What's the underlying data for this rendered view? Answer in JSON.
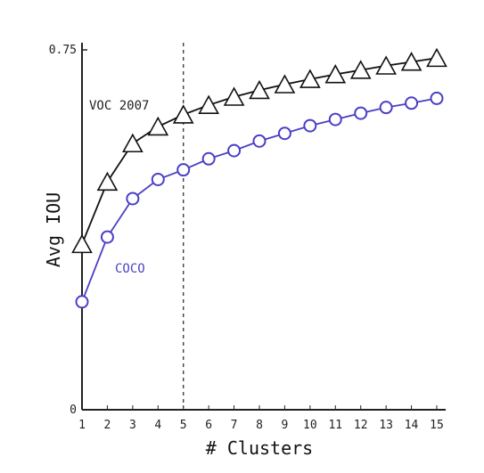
{
  "chart_data": {
    "type": "line",
    "xlabel": "# Clusters",
    "ylabel": "Avg IOU",
    "x": [
      1,
      2,
      3,
      4,
      5,
      6,
      7,
      8,
      9,
      10,
      11,
      12,
      13,
      14,
      15
    ],
    "xlim": [
      1,
      15
    ],
    "ylim": [
      0,
      0.75
    ],
    "ytick_labels": [
      "0",
      "0.75"
    ],
    "reference_line": {
      "x": 5,
      "style": "dashed"
    },
    "grid": false,
    "legend": "none",
    "series": [
      {
        "name": "VOC 2007",
        "marker": "triangle",
        "color": "#111111",
        "values": [
          0.345,
          0.475,
          0.555,
          0.59,
          0.615,
          0.635,
          0.652,
          0.666,
          0.678,
          0.689,
          0.699,
          0.708,
          0.717,
          0.725,
          0.733
        ]
      },
      {
        "name": "COCO",
        "marker": "circle",
        "color": "#4a3fc6",
        "values": [
          0.225,
          0.36,
          0.44,
          0.48,
          0.5,
          0.523,
          0.54,
          0.56,
          0.576,
          0.592,
          0.605,
          0.618,
          0.63,
          0.639,
          0.649
        ]
      }
    ]
  }
}
